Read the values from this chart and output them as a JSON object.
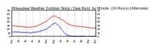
{
  "title": "Milwaukee Weather Outdoor Temp / Dew Point  by Minute  (24 Hours) (Alternate)",
  "title_fontsize": 3.5,
  "background_color": "#ffffff",
  "temp_color": "#cc0000",
  "dew_color": "#0000cc",
  "grid_color": "#888888",
  "ylim": [
    0,
    70
  ],
  "xlim": [
    0,
    1440
  ],
  "ylabel_fontsize": 3.0,
  "xlabel_fontsize": 2.8,
  "marker_size": 0.5,
  "temp_data": [
    [
      0,
      30
    ],
    [
      60,
      29
    ],
    [
      120,
      28
    ],
    [
      180,
      27
    ],
    [
      240,
      26
    ],
    [
      300,
      26
    ],
    [
      360,
      27
    ],
    [
      420,
      29
    ],
    [
      480,
      33
    ],
    [
      540,
      38
    ],
    [
      600,
      43
    ],
    [
      630,
      48
    ],
    [
      660,
      52
    ],
    [
      690,
      55
    ],
    [
      720,
      56
    ],
    [
      750,
      55
    ],
    [
      780,
      52
    ],
    [
      810,
      50
    ],
    [
      840,
      48
    ],
    [
      870,
      45
    ],
    [
      900,
      42
    ],
    [
      930,
      38
    ],
    [
      960,
      35
    ],
    [
      990,
      33
    ],
    [
      1020,
      31
    ],
    [
      1080,
      29
    ],
    [
      1140,
      28
    ],
    [
      1200,
      27
    ],
    [
      1260,
      26
    ],
    [
      1320,
      25
    ],
    [
      1380,
      24
    ],
    [
      1440,
      24
    ]
  ],
  "dew_data": [
    [
      0,
      14
    ],
    [
      60,
      13
    ],
    [
      120,
      13
    ],
    [
      180,
      12
    ],
    [
      240,
      12
    ],
    [
      300,
      11
    ],
    [
      360,
      12
    ],
    [
      420,
      13
    ],
    [
      480,
      15
    ],
    [
      540,
      18
    ],
    [
      600,
      22
    ],
    [
      630,
      26
    ],
    [
      660,
      30
    ],
    [
      690,
      34
    ],
    [
      720,
      37
    ],
    [
      750,
      36
    ],
    [
      780,
      32
    ],
    [
      810,
      28
    ],
    [
      840,
      22
    ],
    [
      870,
      16
    ],
    [
      900,
      10
    ],
    [
      930,
      6
    ],
    [
      960,
      4
    ],
    [
      990,
      3
    ],
    [
      1020,
      2
    ],
    [
      1080,
      1
    ],
    [
      1140,
      1
    ],
    [
      1200,
      1
    ],
    [
      1260,
      0
    ],
    [
      1320,
      0
    ],
    [
      1380,
      0
    ],
    [
      1440,
      0
    ]
  ],
  "xtick_interval": 120,
  "ytick_values": [
    0,
    10,
    20,
    30,
    40,
    50,
    60,
    70
  ],
  "xtick_labels": [
    "12a",
    "2a",
    "4a",
    "6a",
    "8a",
    "10a",
    "12p",
    "2p",
    "4p",
    "6p",
    "8p",
    "10p",
    "12a"
  ]
}
